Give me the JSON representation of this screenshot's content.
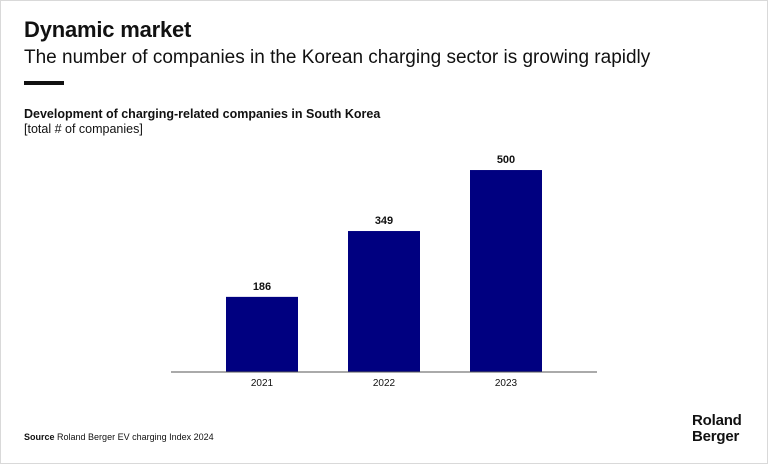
{
  "header": {
    "title": "Dynamic market",
    "subtitle": "The number of companies in the Korean charging sector is growing rapidly"
  },
  "chart_data": {
    "type": "bar",
    "title": "Development of charging-related companies in South Korea",
    "unit_label": "[total # of companies]",
    "categories": [
      "2021",
      "2022",
      "2023"
    ],
    "values": [
      186,
      349,
      500
    ],
    "data_labels": [
      "186",
      "349",
      "500"
    ],
    "ylim": [
      0,
      510
    ],
    "bar_color": "#000080",
    "grid": false,
    "legend": "none"
  },
  "footer": {
    "source_label": "Source",
    "source_text": "Roland Berger EV charging Index 2024",
    "logo_line1": "Roland",
    "logo_line2": "Berger"
  }
}
